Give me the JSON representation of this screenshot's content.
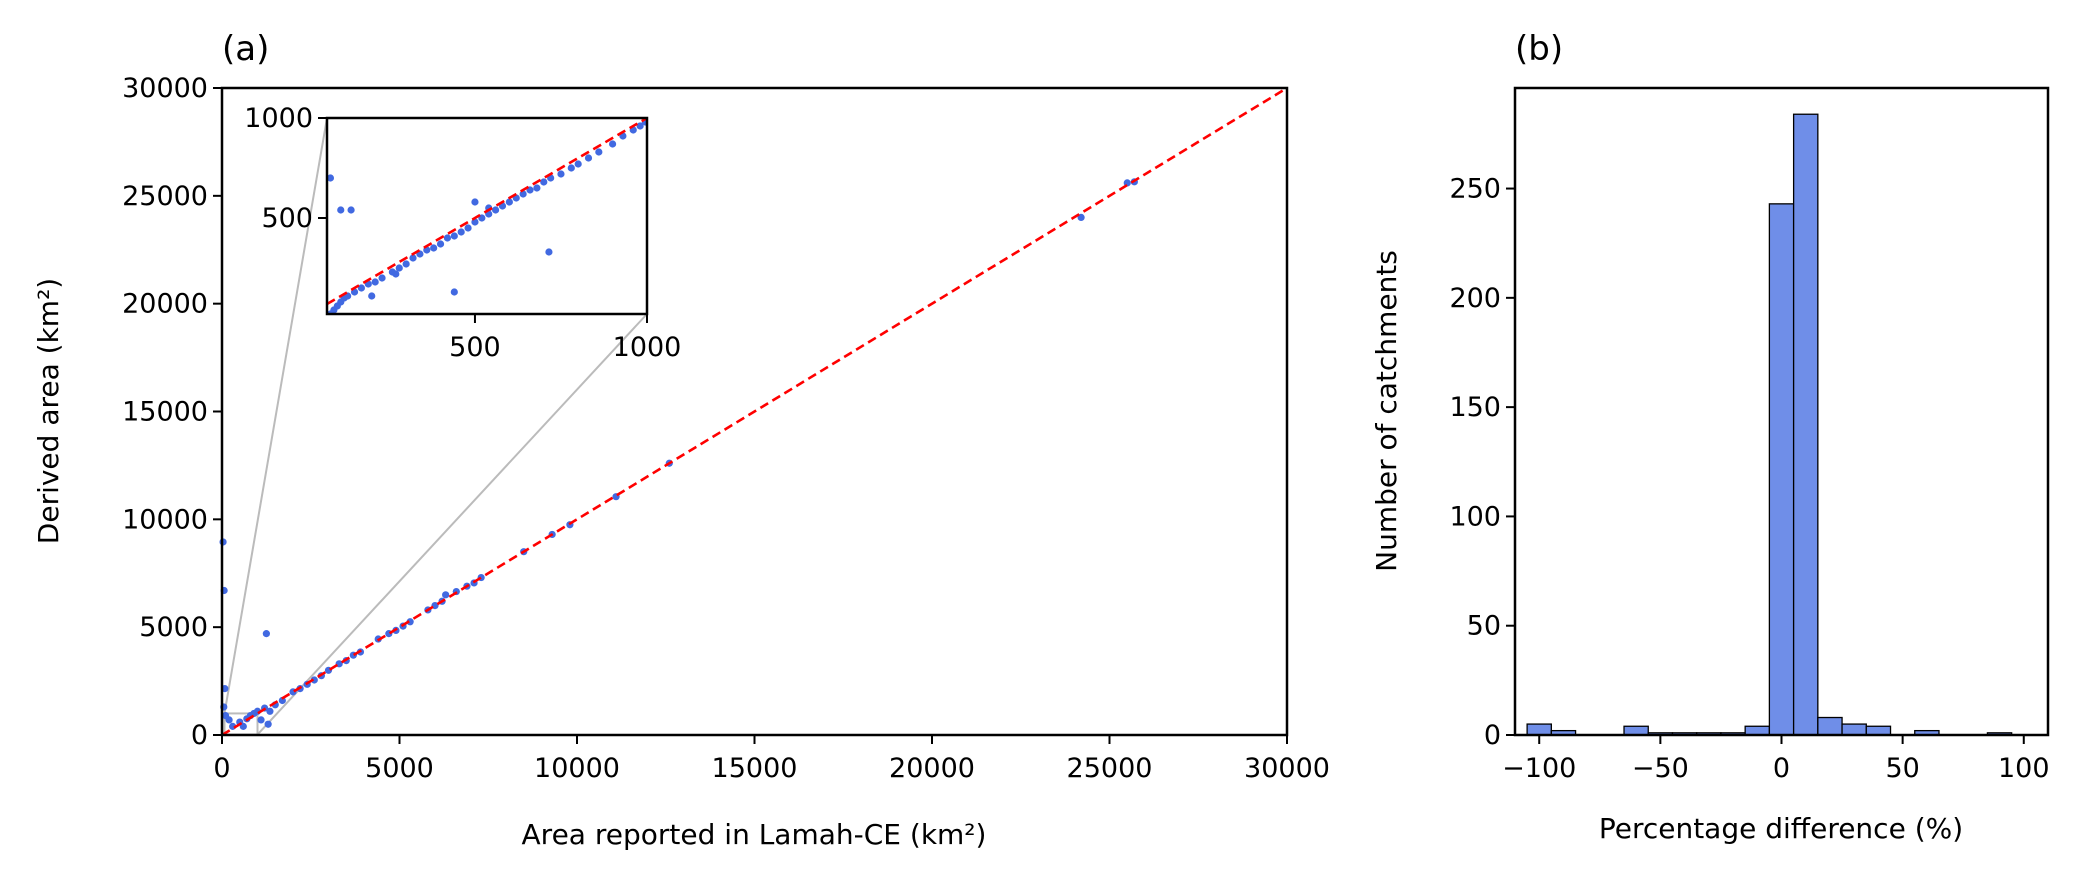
{
  "chart_data": [
    {
      "id": "a",
      "type": "scatter",
      "panel_label": "(a)",
      "xlabel": "Area reported in Lamah-CE (km²)",
      "ylabel": "Derived area (km²)",
      "xlim": [
        0,
        30000
      ],
      "ylim": [
        0,
        30000
      ],
      "xticks": [
        0,
        5000,
        10000,
        15000,
        20000,
        25000,
        30000
      ],
      "yticks": [
        0,
        5000,
        10000,
        15000,
        20000,
        25000,
        30000
      ],
      "grid": false,
      "point_color": "#4169e1",
      "reference_line": {
        "style": "dashed",
        "color": "#ff0000",
        "from": [
          0,
          0
        ],
        "to": [
          30000,
          30000
        ]
      },
      "points": [
        [
          30,
          8950
        ],
        [
          60,
          6700
        ],
        [
          1250,
          4700
        ],
        [
          80,
          2150
        ],
        [
          50,
          1300
        ],
        [
          100,
          900
        ],
        [
          200,
          700
        ],
        [
          300,
          400
        ],
        [
          500,
          600
        ],
        [
          600,
          400
        ],
        [
          700,
          750
        ],
        [
          800,
          900
        ],
        [
          900,
          1000
        ],
        [
          1000,
          1100
        ],
        [
          1100,
          700
        ],
        [
          1200,
          1250
        ],
        [
          1300,
          500
        ],
        [
          1350,
          1100
        ],
        [
          1500,
          1400
        ],
        [
          1700,
          1600
        ],
        [
          2000,
          2000
        ],
        [
          2200,
          2150
        ],
        [
          2400,
          2350
        ],
        [
          2600,
          2550
        ],
        [
          2800,
          2750
        ],
        [
          3000,
          3000
        ],
        [
          3300,
          3300
        ],
        [
          3500,
          3450
        ],
        [
          3700,
          3700
        ],
        [
          3900,
          3850
        ],
        [
          4400,
          4450
        ],
        [
          4700,
          4700
        ],
        [
          4900,
          4850
        ],
        [
          5100,
          5050
        ],
        [
          5300,
          5250
        ],
        [
          5800,
          5800
        ],
        [
          6000,
          6000
        ],
        [
          6200,
          6200
        ],
        [
          6300,
          6500
        ],
        [
          6600,
          6650
        ],
        [
          6900,
          6900
        ],
        [
          7100,
          7050
        ],
        [
          7300,
          7300
        ],
        [
          8500,
          8500
        ],
        [
          9300,
          9300
        ],
        [
          9800,
          9750
        ],
        [
          11100,
          11050
        ],
        [
          12600,
          12600
        ],
        [
          24200,
          24000
        ],
        [
          25500,
          25600
        ],
        [
          25700,
          25650
        ]
      ],
      "inset": {
        "xlim": [
          70,
          1000
        ],
        "ylim": [
          20,
          1000
        ],
        "xticks": [
          500,
          1000
        ],
        "yticks": [
          500,
          1000
        ],
        "connector_color": "#bbbbbb",
        "points": [
          [
            80,
            20
          ],
          [
            90,
            40
          ],
          [
            100,
            60
          ],
          [
            110,
            80
          ],
          [
            120,
            100
          ],
          [
            130,
            110
          ],
          [
            150,
            130
          ],
          [
            170,
            150
          ],
          [
            190,
            170
          ],
          [
            210,
            180
          ],
          [
            230,
            200
          ],
          [
            260,
            230
          ],
          [
            280,
            250
          ],
          [
            300,
            270
          ],
          [
            320,
            300
          ],
          [
            340,
            320
          ],
          [
            360,
            340
          ],
          [
            380,
            350
          ],
          [
            400,
            370
          ],
          [
            420,
            400
          ],
          [
            440,
            410
          ],
          [
            460,
            430
          ],
          [
            480,
            450
          ],
          [
            500,
            480
          ],
          [
            520,
            500
          ],
          [
            540,
            520
          ],
          [
            560,
            540
          ],
          [
            580,
            560
          ],
          [
            600,
            580
          ],
          [
            620,
            600
          ],
          [
            640,
            620
          ],
          [
            660,
            640
          ],
          [
            680,
            650
          ],
          [
            700,
            680
          ],
          [
            720,
            700
          ],
          [
            750,
            720
          ],
          [
            780,
            750
          ],
          [
            800,
            770
          ],
          [
            830,
            800
          ],
          [
            860,
            830
          ],
          [
            900,
            870
          ],
          [
            930,
            910
          ],
          [
            960,
            940
          ],
          [
            980,
            960
          ],
          [
            995,
            980
          ],
          [
            80,
            700
          ],
          [
            110,
            540
          ],
          [
            140,
            540
          ],
          [
            440,
            130
          ],
          [
            715,
            330
          ],
          [
            200,
            110
          ],
          [
            270,
            220
          ],
          [
            500,
            580
          ],
          [
            540,
            550
          ]
        ]
      }
    },
    {
      "id": "b",
      "type": "bar",
      "panel_label": "(b)",
      "xlabel": "Percentage difference (%)",
      "ylabel": "Number of catchments",
      "xlim": [
        -110,
        110
      ],
      "ylim": [
        0,
        296
      ],
      "xticks": [
        -100,
        -50,
        0,
        50,
        100
      ],
      "yticks": [
        0,
        50,
        100,
        150,
        200,
        250
      ],
      "grid": false,
      "bar_color": "#6f8ee8",
      "bin_edges": [
        -105,
        -95,
        -85,
        -75,
        -65,
        -55,
        -45,
        -35,
        -25,
        -15,
        -5,
        5,
        15,
        25,
        35,
        45,
        55,
        65,
        75,
        85,
        95,
        105
      ],
      "counts": [
        5,
        2,
        0,
        0,
        4,
        1,
        1,
        1,
        1,
        4,
        243,
        284,
        8,
        5,
        4,
        0,
        2,
        0,
        0,
        1,
        0
      ]
    }
  ]
}
